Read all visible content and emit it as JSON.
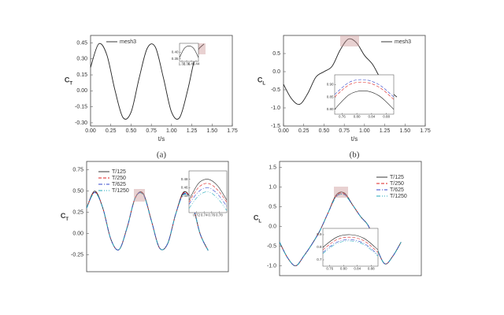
{
  "chart_data": [
    {
      "type": "line",
      "caption": "(a)",
      "ylabel": "C",
      "ylabel_sub": "T",
      "xlabel": "t/s",
      "legend": "upper left",
      "xlim": [
        0,
        1.75
      ],
      "xticks": [
        {
          "value": 0,
          "label": "0.00"
        },
        0.25,
        {
          "value": 0.5,
          "label": "0.50"
        },
        0.75,
        {
          "value": 1,
          "label": "1.00"
        },
        1.25,
        {
          "value": 1.5,
          "label": "1.50"
        },
        1.75
      ],
      "ylim": [
        -0.33,
        0.52
      ],
      "yticks": [
        {
          "value": -0.3,
          "label": "-0.30"
        },
        -0.15,
        {
          "value": 0,
          "label": "0.00"
        },
        0.15,
        {
          "value": 0.3,
          "label": "0.30"
        },
        0.45
      ],
      "x": [
        0,
        0.1,
        0.2,
        0.3,
        0.4,
        0.5,
        0.6,
        0.7,
        0.8,
        0.9,
        1.0,
        1.1,
        1.2,
        1.3,
        1.4
      ],
      "series": [
        {
          "name": "mesh3",
          "color": "#222222",
          "dash": "solid",
          "values": [
            0.22,
            0.44,
            0.34,
            0.01,
            -0.25,
            -0.2,
            0.12,
            0.4,
            0.41,
            0.12,
            -0.2,
            -0.25,
            0.01,
            0.34,
            0.44
          ]
        }
      ],
      "inset": {
        "xlim": [
          1.3,
          1.46
        ],
        "ylim": [
          0.33,
          0.47
        ],
        "xticks": [
          1.32,
          1.36,
          {
            "value": 1.4,
            "label": "1.40"
          },
          1.44
        ],
        "yticks": [
          0.35,
          {
            "value": 0.4,
            "label": "0.40"
          }
        ],
        "x": [
          1.3,
          1.34,
          1.38,
          1.42,
          1.46
        ],
        "series": [
          {
            "color": "#222222",
            "dash": "solid",
            "values": [
              0.36,
              0.43,
              0.45,
              0.43,
              0.36
            ]
          }
        ]
      }
    },
    {
      "type": "line",
      "caption": "(b)",
      "ylabel": "C",
      "ylabel_sub": "L",
      "xlabel": "t/s",
      "legend": "upper right",
      "xlim": [
        0,
        1.75
      ],
      "xticks": [
        {
          "value": 0,
          "label": "0.00"
        },
        0.25,
        {
          "value": 0.5,
          "label": "0.50"
        },
        0.75,
        {
          "value": 1,
          "label": "1.00"
        },
        1.25,
        {
          "value": 1.5,
          "label": "1.50"
        },
        1.75
      ],
      "ylim": [
        -1.5,
        1.0
      ],
      "yticks": [
        -1.5,
        {
          "value": -1,
          "label": "-1.0"
        },
        -0.5,
        {
          "value": 0,
          "label": "0.0"
        },
        0.5
      ],
      "x": [
        0,
        0.1,
        0.2,
        0.3,
        0.4,
        0.5,
        0.6,
        0.7,
        0.8,
        0.9,
        1.0,
        1.1,
        1.2,
        1.3,
        1.4
      ],
      "series": [
        {
          "name": "mesh3",
          "color": "#222222",
          "dash": "solid",
          "values": [
            -0.35,
            -0.75,
            -0.9,
            -0.6,
            -0.15,
            0.0,
            0.15,
            0.6,
            0.9,
            0.8,
            0.45,
            0.2,
            -0.2,
            -0.5,
            -0.7
          ]
        }
      ],
      "inset": {
        "xlim": [
          0.74,
          0.9
        ],
        "ylim": [
          0.78,
          0.94
        ],
        "xticks": [
          0.76,
          {
            "value": 0.8,
            "label": "0.80"
          },
          0.84,
          0.88
        ],
        "yticks": [
          {
            "value": 0.8,
            "label": "0.80"
          },
          0.85,
          {
            "value": 0.9,
            "label": "0.90"
          }
        ],
        "x": [
          0.74,
          0.78,
          0.82,
          0.86,
          0.9
        ],
        "series": [
          {
            "color": "#3344cc",
            "dash": "dashed",
            "values": [
              0.86,
              0.91,
              0.92,
              0.9,
              0.85
            ]
          },
          {
            "color": "#dd2222",
            "dash": "dashed",
            "values": [
              0.85,
              0.9,
              0.91,
              0.89,
              0.84
            ]
          },
          {
            "color": "#222222",
            "dash": "solid",
            "values": [
              0.8,
              0.86,
              0.875,
              0.855,
              0.8
            ]
          }
        ]
      }
    },
    {
      "type": "line",
      "ylabel": "C",
      "ylabel_sub": "T",
      "legend": "upper left",
      "xlim": [
        0,
        1.75
      ],
      "ylim": [
        -0.45,
        0.85
      ],
      "yticks": [
        -0.25,
        {
          "value": 0,
          "label": "0.00"
        },
        0.25,
        {
          "value": 0.5,
          "label": "0.50"
        },
        0.75
      ],
      "x": [
        0,
        0.1,
        0.2,
        0.3,
        0.4,
        0.5,
        0.6,
        0.7,
        0.8,
        0.9,
        1.0,
        1.1,
        1.2,
        1.3,
        1.4,
        1.5
      ],
      "series": [
        {
          "name": "T/125",
          "color": "#222222",
          "dash": "solid",
          "values": [
            0.3,
            0.5,
            0.3,
            -0.07,
            -0.19,
            0.07,
            0.42,
            0.47,
            0.15,
            -0.17,
            -0.12,
            0.23,
            0.49,
            0.37,
            0.0,
            -0.2
          ]
        },
        {
          "name": "T/250",
          "color": "#dd2222",
          "dash": "dashed",
          "values": [
            0.3,
            0.49,
            0.3,
            -0.07,
            -0.19,
            0.07,
            0.42,
            0.465,
            0.15,
            -0.17,
            -0.12,
            0.23,
            0.48,
            0.37,
            0.0,
            -0.2
          ]
        },
        {
          "name": "T/625",
          "color": "#3344cc",
          "dash": "dashdot",
          "values": [
            0.3,
            0.485,
            0.3,
            -0.07,
            -0.19,
            0.07,
            0.42,
            0.46,
            0.15,
            -0.17,
            -0.12,
            0.23,
            0.47,
            0.37,
            0.0,
            -0.2
          ]
        },
        {
          "name": "T/1250",
          "color": "#22aabb",
          "dash": "dashdotdot",
          "values": [
            0.3,
            0.48,
            0.3,
            -0.07,
            -0.19,
            0.07,
            0.42,
            0.455,
            0.15,
            -0.17,
            -0.12,
            0.23,
            0.46,
            0.37,
            0.0,
            -0.2
          ]
        }
      ],
      "inset": {
        "xlim": [
          0.7,
          0.8
        ],
        "ylim": [
          0.4,
          0.5
        ],
        "xticks": [
          0.72,
          0.74,
          0.76,
          0.78
        ],
        "yticks": [
          0.44,
          0.46,
          0.48
        ],
        "x": [
          0.7,
          0.725,
          0.75,
          0.775,
          0.8
        ],
        "series": [
          {
            "color": "#222222",
            "dash": "solid",
            "values": [
              0.43,
              0.47,
              0.48,
              0.465,
              0.43
            ]
          },
          {
            "color": "#dd2222",
            "dash": "dashed",
            "values": [
              0.425,
              0.46,
              0.47,
              0.455,
              0.425
            ]
          },
          {
            "color": "#3344cc",
            "dash": "dashdot",
            "values": [
              0.42,
              0.45,
              0.46,
              0.445,
              0.415
            ]
          },
          {
            "color": "#22aabb",
            "dash": "dashdotdot",
            "values": [
              0.41,
              0.44,
              0.45,
              0.435,
              0.405
            ]
          }
        ]
      }
    },
    {
      "type": "line",
      "ylabel": "C",
      "ylabel_sub": "L",
      "legend": "upper right",
      "xlim": [
        0,
        1.75
      ],
      "ylim": [
        -1.25,
        1.65
      ],
      "yticks": [
        {
          "value": -1,
          "label": "-1.0"
        },
        -0.5,
        {
          "value": 0,
          "label": "0.0"
        },
        0.5,
        {
          "value": 1,
          "label": "1.0"
        },
        1.5
      ],
      "x": [
        0,
        0.1,
        0.2,
        0.3,
        0.4,
        0.5,
        0.6,
        0.7,
        0.8,
        0.9,
        1.0,
        1.1,
        1.2,
        1.3,
        1.4,
        1.5
      ],
      "series": [
        {
          "name": "T/125",
          "color": "#222222",
          "dash": "solid",
          "values": [
            -0.4,
            -0.8,
            -1.0,
            -0.75,
            -0.45,
            -0.1,
            0.35,
            0.8,
            0.85,
            0.55,
            0.25,
            0.0,
            -0.55,
            -0.95,
            -0.75,
            -0.4
          ]
        },
        {
          "name": "T/250",
          "color": "#dd2222",
          "dash": "dashed",
          "values": [
            -0.4,
            -0.8,
            -1.0,
            -0.75,
            -0.45,
            -0.1,
            0.35,
            0.78,
            0.83,
            0.55,
            0.25,
            0.0,
            -0.55,
            -0.95,
            -0.75,
            -0.4
          ]
        },
        {
          "name": "T/625",
          "color": "#3344cc",
          "dash": "dashdot",
          "values": [
            -0.4,
            -0.8,
            -1.0,
            -0.75,
            -0.45,
            -0.1,
            0.35,
            0.76,
            0.81,
            0.55,
            0.25,
            0.0,
            -0.55,
            -0.95,
            -0.75,
            -0.4
          ]
        },
        {
          "name": "T/1250",
          "color": "#22aabb",
          "dash": "dashdotdot",
          "values": [
            -0.4,
            -0.8,
            -1.0,
            -0.75,
            -0.45,
            -0.1,
            0.35,
            0.75,
            0.8,
            0.55,
            0.25,
            0.0,
            -0.55,
            -0.95,
            -0.75,
            -0.4
          ]
        }
      ],
      "inset": {
        "xlim": [
          0.74,
          0.9
        ],
        "ylim": [
          0.65,
          0.95
        ],
        "xticks": [
          0.76,
          {
            "value": 0.8,
            "label": "0.80"
          },
          0.84,
          0.88
        ],
        "yticks": [
          0.7,
          0.8,
          0.9
        ],
        "x": [
          0.74,
          0.78,
          0.82,
          0.86,
          0.9
        ],
        "series": [
          {
            "color": "#222222",
            "dash": "solid",
            "values": [
              0.8,
              0.88,
              0.9,
              0.87,
              0.78
            ]
          },
          {
            "color": "#dd2222",
            "dash": "dashed",
            "values": [
              0.78,
              0.86,
              0.88,
              0.85,
              0.76
            ]
          },
          {
            "color": "#3344cc",
            "dash": "dashdot",
            "values": [
              0.76,
              0.84,
              0.86,
              0.83,
              0.74
            ]
          },
          {
            "color": "#22aabb",
            "dash": "dashdotdot",
            "values": [
              0.75,
              0.83,
              0.85,
              0.82,
              0.73
            ]
          }
        ]
      }
    }
  ]
}
